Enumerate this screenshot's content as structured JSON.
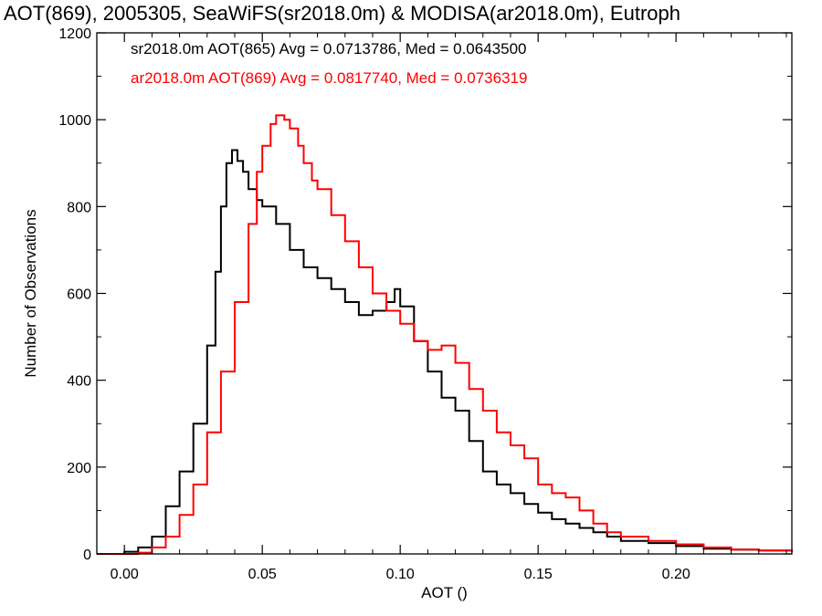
{
  "chart_data": {
    "type": "line",
    "title": "AOT(869), 2005305, SeaWiFS(sr2018.0m) & MODISA(ar2018.0m), Eutroph",
    "xlabel": "AOT ()",
    "ylabel": "Number of Observations",
    "xlim": [
      -0.01,
      0.242
    ],
    "ylim": [
      0,
      1200
    ],
    "x_ticks": [
      0.0,
      0.05,
      0.1,
      0.15,
      0.2
    ],
    "x_tick_labels": [
      "0.00",
      "0.05",
      "0.10",
      "0.15",
      "0.20"
    ],
    "y_ticks": [
      0,
      200,
      400,
      600,
      800,
      1000,
      1200
    ],
    "y_tick_labels": [
      "0",
      "200",
      "400",
      "600",
      "800",
      "1000",
      "1200"
    ],
    "grid": false,
    "legend_position": "top-left",
    "series": [
      {
        "label": "sr2018.0m AOT(865) Avg = 0.0713786, Med = 0.0643500",
        "color": "#000000",
        "points": [
          [
            -0.01,
            0
          ],
          [
            -0.005,
            0
          ],
          [
            0.0,
            5
          ],
          [
            0.005,
            15
          ],
          [
            0.01,
            40
          ],
          [
            0.015,
            110
          ],
          [
            0.02,
            190
          ],
          [
            0.025,
            300
          ],
          [
            0.03,
            480
          ],
          [
            0.033,
            650
          ],
          [
            0.035,
            800
          ],
          [
            0.037,
            900
          ],
          [
            0.039,
            930
          ],
          [
            0.041,
            905
          ],
          [
            0.043,
            880
          ],
          [
            0.045,
            840
          ],
          [
            0.048,
            815
          ],
          [
            0.05,
            800
          ],
          [
            0.055,
            760
          ],
          [
            0.06,
            700
          ],
          [
            0.065,
            660
          ],
          [
            0.07,
            635
          ],
          [
            0.075,
            610
          ],
          [
            0.08,
            580
          ],
          [
            0.085,
            550
          ],
          [
            0.09,
            560
          ],
          [
            0.095,
            580
          ],
          [
            0.098,
            610
          ],
          [
            0.1,
            570
          ],
          [
            0.105,
            490
          ],
          [
            0.11,
            420
          ],
          [
            0.115,
            360
          ],
          [
            0.12,
            330
          ],
          [
            0.125,
            260
          ],
          [
            0.13,
            190
          ],
          [
            0.135,
            160
          ],
          [
            0.14,
            140
          ],
          [
            0.145,
            115
          ],
          [
            0.15,
            95
          ],
          [
            0.155,
            80
          ],
          [
            0.16,
            70
          ],
          [
            0.165,
            60
          ],
          [
            0.17,
            50
          ],
          [
            0.175,
            40
          ],
          [
            0.18,
            30
          ],
          [
            0.19,
            25
          ],
          [
            0.2,
            18
          ],
          [
            0.21,
            12
          ],
          [
            0.22,
            10
          ],
          [
            0.23,
            8
          ],
          [
            0.242,
            5
          ]
        ]
      },
      {
        "label": "ar2018.0m AOT(869) Avg = 0.0817740, Med = 0.0736319",
        "color": "#ff0000",
        "points": [
          [
            -0.01,
            0
          ],
          [
            0.0,
            0
          ],
          [
            0.005,
            3
          ],
          [
            0.01,
            15
          ],
          [
            0.015,
            40
          ],
          [
            0.02,
            90
          ],
          [
            0.025,
            160
          ],
          [
            0.03,
            280
          ],
          [
            0.035,
            420
          ],
          [
            0.04,
            580
          ],
          [
            0.045,
            760
          ],
          [
            0.048,
            880
          ],
          [
            0.05,
            940
          ],
          [
            0.053,
            990
          ],
          [
            0.055,
            1010
          ],
          [
            0.058,
            1000
          ],
          [
            0.06,
            980
          ],
          [
            0.063,
            940
          ],
          [
            0.065,
            900
          ],
          [
            0.068,
            860
          ],
          [
            0.07,
            840
          ],
          [
            0.075,
            780
          ],
          [
            0.08,
            720
          ],
          [
            0.085,
            660
          ],
          [
            0.09,
            600
          ],
          [
            0.095,
            560
          ],
          [
            0.1,
            530
          ],
          [
            0.105,
            490
          ],
          [
            0.11,
            470
          ],
          [
            0.115,
            480
          ],
          [
            0.12,
            440
          ],
          [
            0.125,
            380
          ],
          [
            0.13,
            330
          ],
          [
            0.135,
            280
          ],
          [
            0.14,
            250
          ],
          [
            0.145,
            220
          ],
          [
            0.15,
            160
          ],
          [
            0.155,
            140
          ],
          [
            0.16,
            130
          ],
          [
            0.165,
            100
          ],
          [
            0.17,
            70
          ],
          [
            0.175,
            50
          ],
          [
            0.18,
            40
          ],
          [
            0.19,
            30
          ],
          [
            0.2,
            22
          ],
          [
            0.21,
            15
          ],
          [
            0.22,
            10
          ],
          [
            0.23,
            8
          ],
          [
            0.242,
            5
          ]
        ]
      }
    ]
  }
}
